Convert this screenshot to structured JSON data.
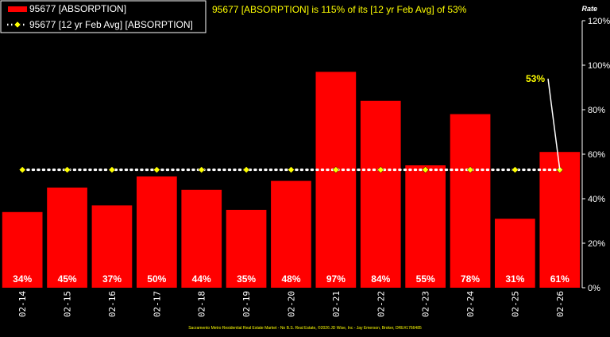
{
  "chart_data": {
    "type": "bar",
    "title": "95677 [ABSORPTION] is 115% of its [12 yr Feb Avg] of 53%",
    "ylabel": "Rate",
    "categories": [
      "02-14",
      "02-15",
      "02-16",
      "02-17",
      "02-18",
      "02-19",
      "02-20",
      "02-21",
      "02-22",
      "02-23",
      "02-24",
      "02-25",
      "02-26"
    ],
    "series": [
      {
        "name": "95677 [ABSORPTION]",
        "type": "bar",
        "color": "#ff0000",
        "values": [
          34,
          45,
          37,
          50,
          44,
          35,
          48,
          97,
          84,
          55,
          78,
          31,
          61
        ],
        "data_labels": [
          "34%",
          "45%",
          "37%",
          "50%",
          "44%",
          "35%",
          "48%",
          "97%",
          "84%",
          "55%",
          "78%",
          "31%",
          "61%"
        ]
      },
      {
        "name": "95677 [12 yr Feb Avg] [ABSORPTION]",
        "type": "line",
        "style": "dotted",
        "marker": "diamond",
        "color": "#ffffff",
        "marker_color": "#ffff00",
        "values": [
          53,
          53,
          53,
          53,
          53,
          53,
          53,
          53,
          53,
          53,
          53,
          53,
          53
        ]
      }
    ],
    "ylim": [
      0,
      120
    ],
    "yticks": [
      "0%",
      "20%",
      "40%",
      "60%",
      "80%",
      "100%",
      "120%"
    ],
    "grid": false,
    "legend": "top-left",
    "callout": "53%",
    "footer": "Sacramento Metro Residential Real Estate Market - No B.S. Real Estate, ©2026 JD Wise, Inc - Jay Emerson, Broker, DRE#1766485",
    "colors": {
      "background": "#000000",
      "bar": "#ff0000",
      "title": "#ffff00",
      "callout": "#ffff00",
      "footer": "#ffff00"
    }
  }
}
